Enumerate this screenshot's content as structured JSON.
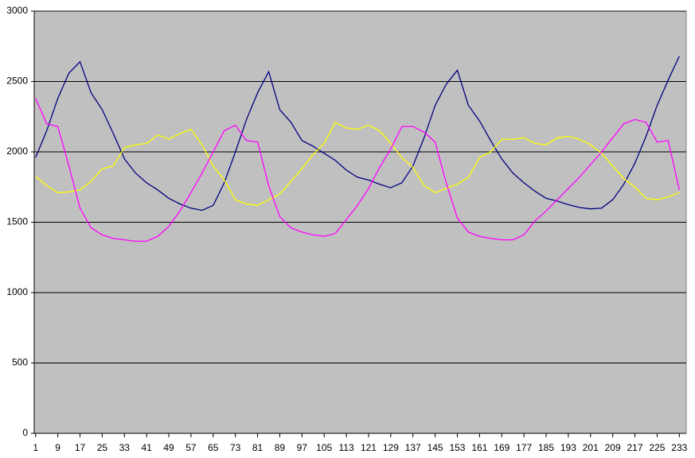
{
  "chart_data": {
    "type": "line",
    "x": [
      1,
      5,
      9,
      13,
      17,
      21,
      25,
      29,
      33,
      37,
      41,
      45,
      49,
      53,
      57,
      61,
      65,
      69,
      73,
      77,
      81,
      85,
      89,
      93,
      97,
      101,
      105,
      109,
      113,
      117,
      121,
      125,
      129,
      133,
      137,
      141,
      145,
      149,
      153,
      157,
      161,
      165,
      169,
      173,
      177,
      181,
      185,
      189,
      193,
      197,
      201,
      205,
      209,
      213,
      217,
      221,
      225,
      229,
      233
    ],
    "series": [
      {
        "color": "#000080",
        "values": [
          1960,
          2150,
          2380,
          2560,
          2640,
          2420,
          2300,
          2130,
          1950,
          1850,
          1780,
          1730,
          1670,
          1630,
          1600,
          1585,
          1620,
          1780,
          2000,
          2230,
          2420,
          2570,
          2300,
          2210,
          2080,
          2040,
          1990,
          1940,
          1870,
          1820,
          1800,
          1770,
          1745,
          1780,
          1900,
          2100,
          2330,
          2480,
          2580,
          2330,
          2220,
          2080,
          1950,
          1850,
          1780,
          1720,
          1670,
          1650,
          1625,
          1605,
          1595,
          1600,
          1660,
          1770,
          1920,
          2110,
          2330,
          2510,
          2680
        ]
      },
      {
        "color": "#ffff00",
        "values": [
          1825,
          1760,
          1710,
          1715,
          1730,
          1790,
          1880,
          1900,
          2030,
          2050,
          2060,
          2120,
          2090,
          2130,
          2160,
          2050,
          1900,
          1800,
          1660,
          1630,
          1620,
          1660,
          1700,
          1790,
          1880,
          1980,
          2060,
          2210,
          2170,
          2160,
          2190,
          2150,
          2060,
          1960,
          1890,
          1760,
          1710,
          1740,
          1770,
          1820,
          1960,
          2000,
          2090,
          2090,
          2100,
          2060,
          2050,
          2100,
          2110,
          2090,
          2050,
          1990,
          1900,
          1810,
          1750,
          1670,
          1660,
          1680,
          1710
        ]
      },
      {
        "color": "#ff00ff",
        "values": [
          2380,
          2200,
          2180,
          1900,
          1600,
          1460,
          1410,
          1385,
          1375,
          1365,
          1365,
          1400,
          1470,
          1580,
          1710,
          1850,
          2000,
          2150,
          2190,
          2080,
          2070,
          1760,
          1540,
          1460,
          1430,
          1410,
          1400,
          1420,
          1520,
          1620,
          1740,
          1890,
          2020,
          2180,
          2180,
          2140,
          2070,
          1780,
          1530,
          1430,
          1400,
          1385,
          1375,
          1375,
          1410,
          1510,
          1580,
          1660,
          1740,
          1820,
          1910,
          2000,
          2100,
          2200,
          2230,
          2210,
          2070,
          2080,
          1730
        ]
      }
    ],
    "xlim": [
      0.5,
      235.5
    ],
    "xticks": [
      1,
      9,
      17,
      25,
      33,
      41,
      49,
      57,
      65,
      73,
      81,
      89,
      97,
      105,
      113,
      121,
      129,
      137,
      145,
      153,
      161,
      169,
      177,
      185,
      193,
      201,
      209,
      217,
      225,
      233
    ],
    "ylim": [
      0,
      3000
    ],
    "yticks": [
      0,
      500,
      1000,
      1500,
      2000,
      2500,
      3000
    ],
    "grid": true
  }
}
